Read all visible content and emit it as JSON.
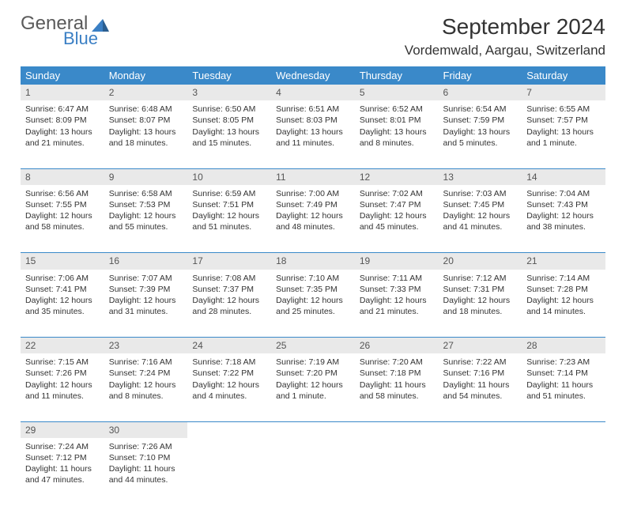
{
  "brand": {
    "general": "General",
    "blue": "Blue"
  },
  "title": "September 2024",
  "location": "Vordemwald, Aargau, Switzerland",
  "colors": {
    "header_bg": "#3a89c9",
    "header_text": "#ffffff",
    "daynum_bg": "#e9e9e9",
    "row_divider": "#3a89c9",
    "logo_blue": "#3a7fc4",
    "logo_gray": "#5a5a5a"
  },
  "weekdays": [
    "Sunday",
    "Monday",
    "Tuesday",
    "Wednesday",
    "Thursday",
    "Friday",
    "Saturday"
  ],
  "weeks": [
    [
      {
        "n": "1",
        "sr": "6:47 AM",
        "ss": "8:09 PM",
        "dl": "13 hours and 21 minutes."
      },
      {
        "n": "2",
        "sr": "6:48 AM",
        "ss": "8:07 PM",
        "dl": "13 hours and 18 minutes."
      },
      {
        "n": "3",
        "sr": "6:50 AM",
        "ss": "8:05 PM",
        "dl": "13 hours and 15 minutes."
      },
      {
        "n": "4",
        "sr": "6:51 AM",
        "ss": "8:03 PM",
        "dl": "13 hours and 11 minutes."
      },
      {
        "n": "5",
        "sr": "6:52 AM",
        "ss": "8:01 PM",
        "dl": "13 hours and 8 minutes."
      },
      {
        "n": "6",
        "sr": "6:54 AM",
        "ss": "7:59 PM",
        "dl": "13 hours and 5 minutes."
      },
      {
        "n": "7",
        "sr": "6:55 AM",
        "ss": "7:57 PM",
        "dl": "13 hours and 1 minute."
      }
    ],
    [
      {
        "n": "8",
        "sr": "6:56 AM",
        "ss": "7:55 PM",
        "dl": "12 hours and 58 minutes."
      },
      {
        "n": "9",
        "sr": "6:58 AM",
        "ss": "7:53 PM",
        "dl": "12 hours and 55 minutes."
      },
      {
        "n": "10",
        "sr": "6:59 AM",
        "ss": "7:51 PM",
        "dl": "12 hours and 51 minutes."
      },
      {
        "n": "11",
        "sr": "7:00 AM",
        "ss": "7:49 PM",
        "dl": "12 hours and 48 minutes."
      },
      {
        "n": "12",
        "sr": "7:02 AM",
        "ss": "7:47 PM",
        "dl": "12 hours and 45 minutes."
      },
      {
        "n": "13",
        "sr": "7:03 AM",
        "ss": "7:45 PM",
        "dl": "12 hours and 41 minutes."
      },
      {
        "n": "14",
        "sr": "7:04 AM",
        "ss": "7:43 PM",
        "dl": "12 hours and 38 minutes."
      }
    ],
    [
      {
        "n": "15",
        "sr": "7:06 AM",
        "ss": "7:41 PM",
        "dl": "12 hours and 35 minutes."
      },
      {
        "n": "16",
        "sr": "7:07 AM",
        "ss": "7:39 PM",
        "dl": "12 hours and 31 minutes."
      },
      {
        "n": "17",
        "sr": "7:08 AM",
        "ss": "7:37 PM",
        "dl": "12 hours and 28 minutes."
      },
      {
        "n": "18",
        "sr": "7:10 AM",
        "ss": "7:35 PM",
        "dl": "12 hours and 25 minutes."
      },
      {
        "n": "19",
        "sr": "7:11 AM",
        "ss": "7:33 PM",
        "dl": "12 hours and 21 minutes."
      },
      {
        "n": "20",
        "sr": "7:12 AM",
        "ss": "7:31 PM",
        "dl": "12 hours and 18 minutes."
      },
      {
        "n": "21",
        "sr": "7:14 AM",
        "ss": "7:28 PM",
        "dl": "12 hours and 14 minutes."
      }
    ],
    [
      {
        "n": "22",
        "sr": "7:15 AM",
        "ss": "7:26 PM",
        "dl": "12 hours and 11 minutes."
      },
      {
        "n": "23",
        "sr": "7:16 AM",
        "ss": "7:24 PM",
        "dl": "12 hours and 8 minutes."
      },
      {
        "n": "24",
        "sr": "7:18 AM",
        "ss": "7:22 PM",
        "dl": "12 hours and 4 minutes."
      },
      {
        "n": "25",
        "sr": "7:19 AM",
        "ss": "7:20 PM",
        "dl": "12 hours and 1 minute."
      },
      {
        "n": "26",
        "sr": "7:20 AM",
        "ss": "7:18 PM",
        "dl": "11 hours and 58 minutes."
      },
      {
        "n": "27",
        "sr": "7:22 AM",
        "ss": "7:16 PM",
        "dl": "11 hours and 54 minutes."
      },
      {
        "n": "28",
        "sr": "7:23 AM",
        "ss": "7:14 PM",
        "dl": "11 hours and 51 minutes."
      }
    ],
    [
      {
        "n": "29",
        "sr": "7:24 AM",
        "ss": "7:12 PM",
        "dl": "11 hours and 47 minutes."
      },
      {
        "n": "30",
        "sr": "7:26 AM",
        "ss": "7:10 PM",
        "dl": "11 hours and 44 minutes."
      },
      null,
      null,
      null,
      null,
      null
    ]
  ],
  "labels": {
    "sunrise": "Sunrise:",
    "sunset": "Sunset:",
    "daylight": "Daylight:"
  }
}
